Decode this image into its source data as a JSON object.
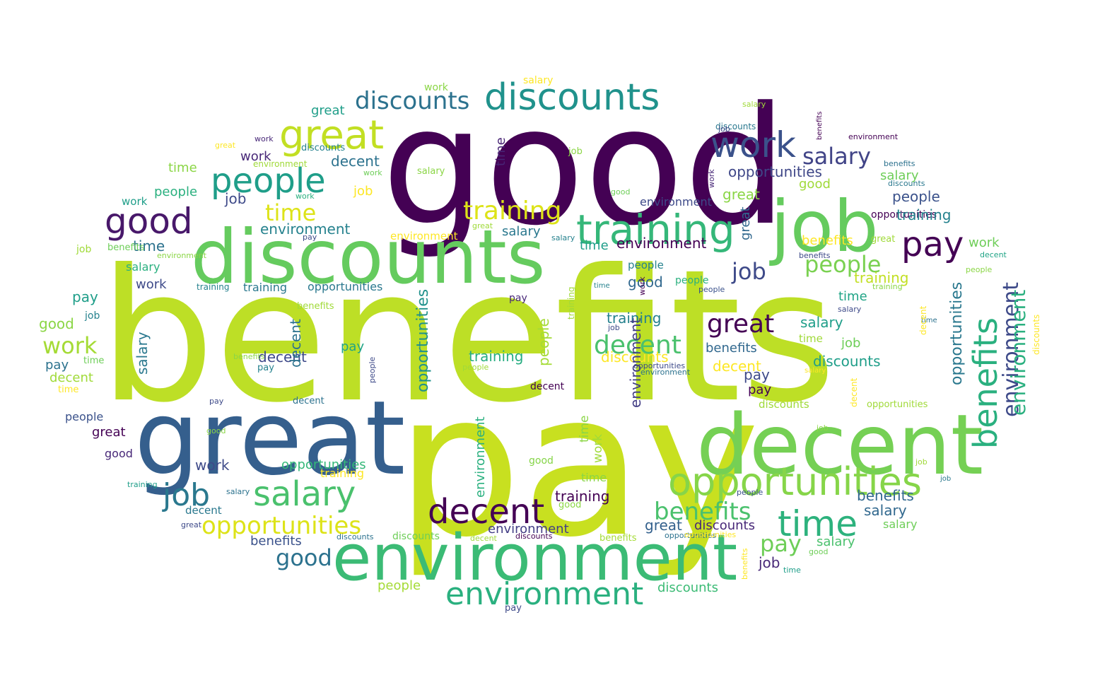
{
  "wordcloud": {
    "palette": {
      "p1": "#440154",
      "p2": "#482777",
      "p3": "#3f4a8a",
      "p4": "#31678e",
      "p5": "#26838f",
      "p6": "#1f9d8a",
      "p7": "#35b779",
      "p8": "#6cce5a",
      "p9": "#b6de2b",
      "p10": "#fee825"
    },
    "words": [
      {
        "text": "benefits",
        "color": "#bddf26"
      },
      {
        "text": "pay",
        "color": "#c8e020"
      },
      {
        "text": "good",
        "color": "#440154"
      },
      {
        "text": "discounts",
        "color": "#65cb5e"
      },
      {
        "text": "great",
        "color": "#355f8d"
      },
      {
        "text": "decent",
        "color": "#75d054"
      },
      {
        "text": "environment",
        "color": "#3bbb75"
      },
      {
        "text": "job",
        "color": "#65cb5e"
      },
      {
        "text": "training",
        "color": "#35b779"
      },
      {
        "text": "discounts",
        "color": "#20928c"
      },
      {
        "text": "opportunities",
        "color": "#86d549"
      },
      {
        "text": "salary",
        "color": "#4ac16d"
      },
      {
        "text": "time",
        "color": "#2db27d"
      },
      {
        "text": "decent",
        "color": "#440154"
      },
      {
        "text": "environment",
        "color": "#2ab07f"
      },
      {
        "text": "people",
        "color": "#1f9e89"
      },
      {
        "text": "great",
        "color": "#c2df23"
      },
      {
        "text": "good",
        "color": "#48186a"
      },
      {
        "text": "job",
        "color": "#2a788e"
      },
      {
        "text": "work",
        "color": "#3b528b"
      },
      {
        "text": "pay",
        "color": "#440154"
      },
      {
        "text": "benefits",
        "color": "#2ab07f"
      },
      {
        "text": "environment",
        "color": "#3e4a89"
      },
      {
        "text": "discounts",
        "color": "#2c728e"
      },
      {
        "text": "opportunities",
        "color": "#dde318"
      },
      {
        "text": "benefits",
        "color": "#4ac16d"
      },
      {
        "text": "salary",
        "color": "#414487"
      },
      {
        "text": "training",
        "color": "#dde318"
      },
      {
        "text": "decent",
        "color": "#4ac16d"
      },
      {
        "text": "great",
        "color": "#440154"
      },
      {
        "text": "people",
        "color": "#7ad151"
      },
      {
        "text": "pay",
        "color": "#6ece58"
      },
      {
        "text": "time",
        "color": "#dde318"
      },
      {
        "text": "work",
        "color": "#a5db36"
      },
      {
        "text": "good",
        "color": "#2c728e"
      },
      {
        "text": "job",
        "color": "#3e4a89"
      },
      {
        "text": "opportunities",
        "color": "#2a788e"
      },
      {
        "text": "opportunities",
        "color": "#21918c"
      },
      {
        "text": "discounts",
        "color": "#fde725"
      },
      {
        "text": "decent",
        "color": "#fde725"
      },
      {
        "text": "opportunities",
        "color": "#3f4788"
      },
      {
        "text": "opportunities",
        "color": "#35b779"
      },
      {
        "text": "people",
        "color": "#3b528b"
      },
      {
        "text": "opportunities",
        "color": "#440154"
      },
      {
        "text": "decent",
        "color": "#3e4989"
      },
      {
        "text": "decent",
        "color": "#2c728e"
      },
      {
        "text": "environment",
        "color": "#26828e"
      },
      {
        "text": "environment",
        "color": "#3e4a89"
      },
      {
        "text": "environment",
        "color": "#440154"
      },
      {
        "text": "people",
        "color": "#6ece58"
      },
      {
        "text": "pay",
        "color": "#3e4a89"
      },
      {
        "text": "training",
        "color": "#26828e"
      },
      {
        "text": "training",
        "color": "#26828e"
      },
      {
        "text": "training",
        "color": "#440154"
      },
      {
        "text": "training",
        "color": "#27ad81"
      },
      {
        "text": "training",
        "color": "#c2df23"
      },
      {
        "text": "salary",
        "color": "#1f9e89"
      },
      {
        "text": "salary",
        "color": "#31688e"
      },
      {
        "text": "salary",
        "color": "#4ac16d"
      },
      {
        "text": "salary",
        "color": "#2a788e"
      },
      {
        "text": "time",
        "color": "#482475"
      },
      {
        "text": "time",
        "color": "#20a486"
      },
      {
        "text": "time",
        "color": "#2c728e"
      },
      {
        "text": "time",
        "color": "#1f9e89"
      },
      {
        "text": "great",
        "color": "#34618d"
      },
      {
        "text": "great",
        "color": "#8bd646"
      },
      {
        "text": "great",
        "color": "#fde725"
      },
      {
        "text": "work",
        "color": "#6ece58"
      },
      {
        "text": "work",
        "color": "#482878"
      },
      {
        "text": "work",
        "color": "#3e4a89"
      },
      {
        "text": "job",
        "color": "#3e4a89"
      },
      {
        "text": "job",
        "color": "#fde725"
      },
      {
        "text": "job",
        "color": "#482878"
      },
      {
        "text": "job",
        "color": "#6ece58"
      },
      {
        "text": "pay",
        "color": "#20a486"
      },
      {
        "text": "pay",
        "color": "#440154"
      },
      {
        "text": "pay",
        "color": "#1f9e89"
      },
      {
        "text": "pay",
        "color": "#2c728e"
      },
      {
        "text": "good",
        "color": "#31688e"
      },
      {
        "text": "good",
        "color": "#a0da39"
      },
      {
        "text": "good",
        "color": "#8bd646"
      },
      {
        "text": "benefits",
        "color": "#31688e"
      },
      {
        "text": "benefits",
        "color": "#31688e"
      },
      {
        "text": "benefits",
        "color": "#3b528b"
      },
      {
        "text": "discounts",
        "color": "#1f9e89"
      },
      {
        "text": "discounts",
        "color": "#482878"
      },
      {
        "text": "discounts",
        "color": "#3bbb75"
      },
      {
        "text": "people",
        "color": "#a5db36"
      },
      {
        "text": "people",
        "color": "#2ab07f"
      },
      {
        "text": "decent",
        "color": "#a0da39"
      },
      {
        "text": "great",
        "color": "#1f9e89"
      },
      {
        "text": "great",
        "color": "#440154"
      },
      {
        "text": "environment",
        "color": "#433e85"
      },
      {
        "text": "environment",
        "color": "#fde725"
      },
      {
        "text": "opportunities",
        "color": "#2a788e"
      },
      {
        "text": "opportunities",
        "color": "#a0da39"
      },
      {
        "text": "salary",
        "color": "#2ab07f"
      },
      {
        "text": "salary",
        "color": "#6ece58"
      },
      {
        "text": "time",
        "color": "#8bd646"
      },
      {
        "text": "time",
        "color": "#8bd646"
      },
      {
        "text": "work",
        "color": "#a0da39"
      },
      {
        "text": "work",
        "color": "#3e4a89"
      },
      {
        "text": "work",
        "color": "#482878"
      },
      {
        "text": "job",
        "color": "#26828e"
      },
      {
        "text": "job",
        "color": "#a0da39"
      },
      {
        "text": "pay",
        "color": "#482878"
      },
      {
        "text": "pay",
        "color": "#b8de29"
      },
      {
        "text": "good",
        "color": "#86d549"
      },
      {
        "text": "good",
        "color": "#482878"
      },
      {
        "text": "people",
        "color": "#3b528b"
      },
      {
        "text": "people",
        "color": "#26828e"
      },
      {
        "text": "decent",
        "color": "#440154"
      },
      {
        "text": "decent",
        "color": "#2a788e"
      },
      {
        "text": "training",
        "color": "#2a788e"
      },
      {
        "text": "training",
        "color": "#fde725"
      },
      {
        "text": "discounts",
        "color": "#6ece58"
      },
      {
        "text": "discounts",
        "color": "#a0da39"
      },
      {
        "text": "discounts",
        "color": "#26828e"
      },
      {
        "text": "benefits",
        "color": "#a5db36"
      },
      {
        "text": "benefits",
        "color": "#fde725"
      },
      {
        "text": "environment",
        "color": "#2ab07f"
      },
      {
        "text": "good",
        "color": "#fde725"
      },
      {
        "text": "great",
        "color": "#31688e"
      },
      {
        "text": "great",
        "color": "#6ece58"
      },
      {
        "text": "job",
        "color": "#a0da39"
      },
      {
        "text": "opportunities",
        "color": "#fde725"
      },
      {
        "text": "salary",
        "color": "#3e4a89"
      },
      {
        "text": "salary",
        "color": "#fde725"
      },
      {
        "text": "time",
        "color": "#2c728e"
      },
      {
        "text": "work",
        "color": "#8bd646"
      },
      {
        "text": "pay",
        "color": "#482878"
      },
      {
        "text": "people",
        "color": "#2ab07f"
      },
      {
        "text": "people",
        "color": "#8bd646"
      },
      {
        "text": "decent",
        "color": "#fde725"
      },
      {
        "text": "benefits",
        "color": "#fde725"
      },
      {
        "text": "benefits",
        "color": "#3e4a89"
      },
      {
        "text": "discounts",
        "color": "#2a788e"
      },
      {
        "text": "training",
        "color": "#8bd646"
      },
      {
        "text": "salary",
        "color": "#8bd646"
      },
      {
        "text": "job",
        "color": "#a0da39"
      },
      {
        "text": "job",
        "color": "#2a788e"
      },
      {
        "text": "good",
        "color": "#6ece58"
      },
      {
        "text": "time",
        "color": "#a0da39"
      },
      {
        "text": "work",
        "color": "#2ab07f"
      },
      {
        "text": "great",
        "color": "#a0da39"
      },
      {
        "text": "people",
        "color": "#3b528b"
      },
      {
        "text": "pay",
        "color": "#3e4a89"
      },
      {
        "text": "opportunities",
        "color": "#2c728e"
      },
      {
        "text": "environment",
        "color": "#2c728e"
      },
      {
        "text": "discounts",
        "color": "#2c728e"
      },
      {
        "text": "decent",
        "color": "#a0da39"
      },
      {
        "text": "training",
        "color": "#1f9e89"
      },
      {
        "text": "benefits",
        "color": "#6ece58"
      },
      {
        "text": "salary",
        "color": "#2c728e"
      },
      {
        "text": "time",
        "color": "#1f9e89"
      },
      {
        "text": "work",
        "color": "#1f9e89"
      },
      {
        "text": "job",
        "color": "#8bd646"
      },
      {
        "text": "good",
        "color": "#8bd646"
      },
      {
        "text": "great",
        "color": "#3e4a89"
      },
      {
        "text": "people",
        "color": "#a0da39"
      },
      {
        "text": "pay",
        "color": "#3e4a89"
      },
      {
        "text": "opportunities",
        "color": "#3e4a89"
      },
      {
        "text": "environment",
        "color": "#440154"
      },
      {
        "text": "discounts",
        "color": "#2a788e"
      },
      {
        "text": "decent",
        "color": "#20a486"
      },
      {
        "text": "training",
        "color": "#a0da39"
      },
      {
        "text": "benefits",
        "color": "#2c728e"
      },
      {
        "text": "salary",
        "color": "#a0da39"
      },
      {
        "text": "time",
        "color": "#26828e"
      },
      {
        "text": "work",
        "color": "#482878"
      },
      {
        "text": "job",
        "color": "#3e4a89"
      },
      {
        "text": "good",
        "color": "#6ece58"
      },
      {
        "text": "great",
        "color": "#fde725"
      },
      {
        "text": "people",
        "color": "#3b528b"
      },
      {
        "text": "pay",
        "color": "#482878"
      },
      {
        "text": "opportunities",
        "color": "#fde725"
      },
      {
        "text": "environment",
        "color": "#8bd646"
      },
      {
        "text": "discounts",
        "color": "#a0da39"
      },
      {
        "text": "decent",
        "color": "#fde725"
      },
      {
        "text": "training",
        "color": "#fde725"
      },
      {
        "text": "benefits",
        "color": "#440154"
      },
      {
        "text": "salary",
        "color": "#26828e"
      },
      {
        "text": "time",
        "color": "#6ece58"
      },
      {
        "text": "work",
        "color": "#6ece58"
      },
      {
        "text": "job",
        "color": "#3e4a89"
      },
      {
        "text": "good",
        "color": "#2ab07f"
      },
      {
        "text": "great",
        "color": "#440154"
      },
      {
        "text": "people",
        "color": "#2c728e"
      },
      {
        "text": "pay",
        "color": "#3e4a89"
      },
      {
        "text": "opportunities",
        "color": "#482878"
      },
      {
        "text": "environment",
        "color": "#2ab07f"
      },
      {
        "text": "discounts",
        "color": "#440154"
      },
      {
        "text": "decent",
        "color": "#2c728e"
      },
      {
        "text": "training",
        "color": "#a0da39"
      },
      {
        "text": "benefits",
        "color": "#a0da39"
      },
      {
        "text": "salary",
        "color": "#6ece58"
      },
      {
        "text": "time",
        "color": "#fde725"
      },
      {
        "text": "work",
        "color": "#440154"
      },
      {
        "text": "job",
        "color": "#8bd646"
      },
      {
        "text": "good",
        "color": "#8bd646"
      },
      {
        "text": "great",
        "color": "#a0da39"
      },
      {
        "text": "people",
        "color": "#3e4a89"
      },
      {
        "text": "pay",
        "color": "#26828e"
      },
      {
        "text": "opportunities",
        "color": "#2c728e"
      },
      {
        "text": "environment",
        "color": "#a0da39"
      },
      {
        "text": "discounts",
        "color": "#fde725"
      },
      {
        "text": "decent",
        "color": "#3e4a89"
      },
      {
        "text": "training",
        "color": "#26828e"
      },
      {
        "text": "benefits",
        "color": "#8bd646"
      },
      {
        "text": "salary",
        "color": "#fde725"
      },
      {
        "text": "time",
        "color": "#fde725"
      },
      {
        "text": "work",
        "color": "#482878"
      },
      {
        "text": "job",
        "color": "#26828e"
      },
      {
        "text": "good",
        "color": "#1f9e89"
      },
      {
        "text": "great",
        "color": "#6ece58"
      },
      {
        "text": "people",
        "color": "#482878"
      },
      {
        "text": "pay",
        "color": "#6ece58"
      }
    ]
  }
}
